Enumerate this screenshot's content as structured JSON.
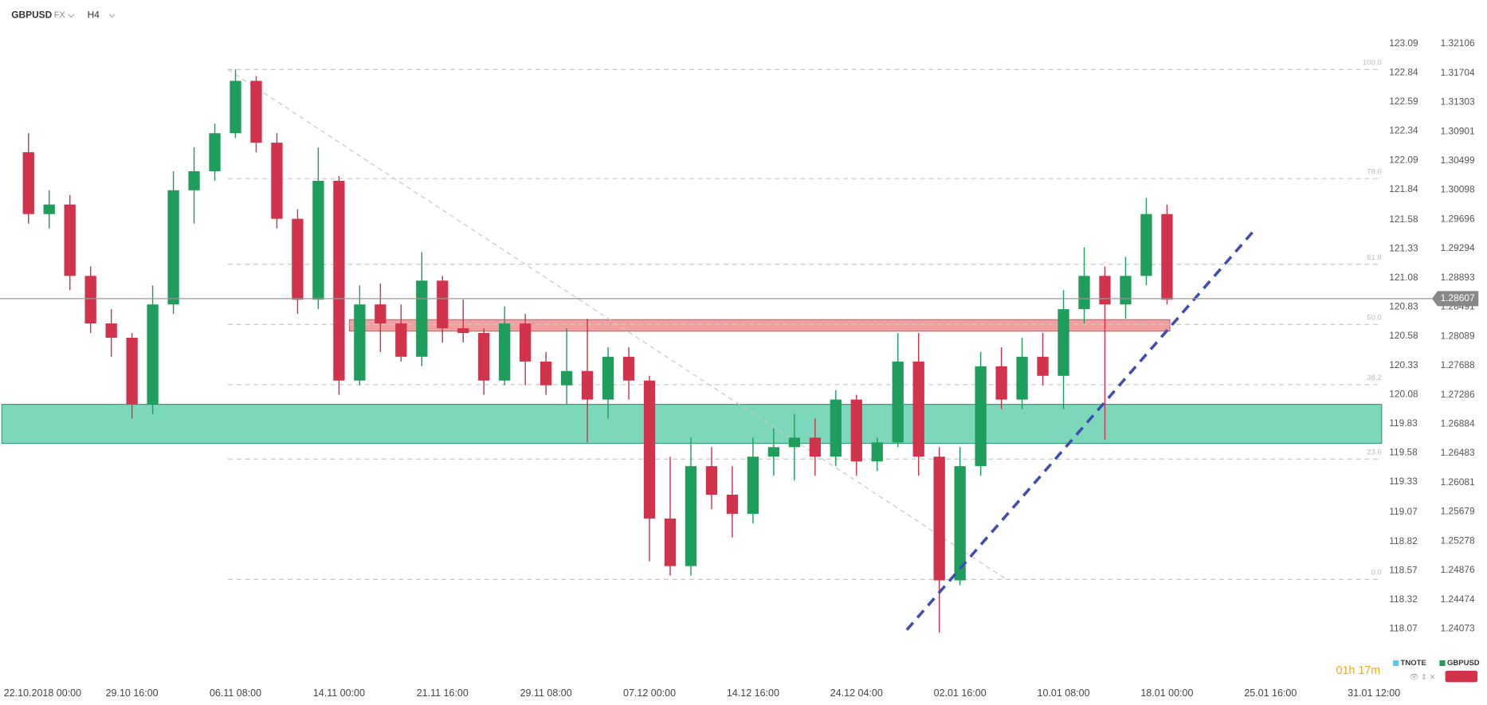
{
  "chart_data": {
    "type": "candlestick",
    "symbol": "GBPUSD",
    "market": "FX",
    "timeframe": "H4",
    "countdown": "01h 17m",
    "up_color": "#1f9d5c",
    "down_color": "#d0334b",
    "categories": [
      "22.10.2018 00:00",
      null,
      null,
      null,
      null,
      "29.10 16:00",
      null,
      null,
      null,
      null,
      "06.11 08:00",
      null,
      null,
      null,
      null,
      "14.11 00:00",
      null,
      null,
      null,
      null,
      "21.11 16:00",
      null,
      null,
      null,
      null,
      "29.11 08:00",
      null,
      null,
      null,
      null,
      "07.12 00:00",
      null,
      null,
      null,
      null,
      "14.12 16:00",
      null,
      null,
      null,
      null,
      "24.12 04:00",
      null,
      null,
      null,
      null,
      "02.01 16:00",
      null,
      null,
      null,
      null,
      "10.01 08:00",
      null,
      null,
      null,
      null,
      "18.01 00:00",
      null,
      null,
      null,
      null,
      "25.01 16:00",
      null,
      null,
      null,
      null,
      "31.01 12:00"
    ],
    "open": [
      1.30617,
      1.29768,
      1.29899,
      1.28919,
      1.28266,
      1.2807,
      1.27155,
      1.28527,
      1.30095,
      1.30356,
      1.30878,
      1.31597,
      1.30748,
      1.29703,
      1.28592,
      1.30225,
      1.27482,
      1.28527,
      1.28266,
      1.27809,
      1.28854,
      1.282,
      1.28135,
      1.27482,
      1.28266,
      1.27743,
      1.27417,
      1.27613,
      1.27221,
      1.27809,
      1.27482,
      1.25588,
      1.24935,
      1.26307,
      1.25915,
      1.25653,
      1.26437,
      1.26568,
      1.26698,
      1.26437,
      1.27221,
      1.26372,
      1.26633,
      1.27743,
      1.26437,
      1.24739,
      1.26307,
      1.27678,
      1.27221,
      1.27809,
      1.27547,
      1.28462,
      1.28919,
      1.28527,
      1.28919,
      1.29768,
      null,
      null,
      null,
      null,
      null,
      null,
      null,
      null,
      null,
      null
    ],
    "high": [
      1.30878,
      1.30095,
      1.30029,
      1.2905,
      1.28462,
      1.28135,
      1.28788,
      1.30356,
      1.30682,
      1.31009,
      1.31753,
      1.31662,
      1.30878,
      1.29833,
      1.30682,
      1.3029,
      1.28788,
      1.28814,
      1.28527,
      1.29245,
      1.28919,
      1.28592,
      1.282,
      1.28501,
      1.28396,
      1.27874,
      1.282,
      1.28331,
      1.27939,
      1.27939,
      1.27547,
      1.26437,
      1.26698,
      1.26568,
      1.26307,
      1.26698,
      1.26829,
      1.27025,
      1.2696,
      1.27351,
      1.27286,
      1.26698,
      1.28135,
      1.28135,
      1.26568,
      1.26568,
      1.27874,
      1.27939,
      1.2807,
      1.28135,
      1.28723,
      1.29311,
      1.2905,
      1.2918,
      1.2999,
      1.29899,
      null,
      null,
      null,
      null,
      null,
      null,
      null,
      null,
      null,
      null
    ],
    "low": [
      1.29637,
      1.29572,
      1.28723,
      1.28135,
      1.27809,
      1.2696,
      1.27025,
      1.28396,
      1.29637,
      1.30225,
      1.30813,
      1.30617,
      1.29572,
      1.28396,
      1.28462,
      1.27286,
      1.27417,
      1.27874,
      1.27743,
      1.27678,
      1.28005,
      1.28005,
      1.27286,
      1.27417,
      1.27417,
      1.27286,
      1.27155,
      1.26633,
      1.2696,
      1.27221,
      1.25,
      1.24804,
      1.24804,
      1.25719,
      1.25327,
      1.25523,
      1.26176,
      1.26111,
      1.26176,
      1.26307,
      1.26176,
      1.26241,
      1.26568,
      1.26176,
      1.24021,
      1.24674,
      1.26176,
      1.2709,
      1.2709,
      1.27417,
      1.2709,
      1.28266,
      1.26672,
      1.28331,
      1.28788,
      1.28527,
      null,
      null,
      null,
      null,
      null,
      null,
      null,
      null,
      null,
      null
    ],
    "close": [
      1.29768,
      1.29899,
      1.28919,
      1.28266,
      1.2807,
      1.27155,
      1.28527,
      1.30095,
      1.30356,
      1.30878,
      1.31597,
      1.30748,
      1.29703,
      1.28592,
      1.30225,
      1.27482,
      1.28527,
      1.28266,
      1.27809,
      1.28854,
      1.282,
      1.28135,
      1.27482,
      1.28266,
      1.27743,
      1.27417,
      1.27613,
      1.27221,
      1.27809,
      1.27482,
      1.25588,
      1.24935,
      1.26307,
      1.25915,
      1.25653,
      1.26437,
      1.26568,
      1.26698,
      1.26437,
      1.27221,
      1.26372,
      1.26633,
      1.27743,
      1.26437,
      1.24739,
      1.26307,
      1.27678,
      1.27221,
      1.27809,
      1.27547,
      1.28462,
      1.28919,
      1.28527,
      1.28919,
      1.29768,
      1.28592,
      null,
      null,
      null,
      null,
      null,
      null,
      null,
      null,
      null,
      null
    ],
    "ylim": [
      1.23498,
      1.32315
    ],
    "yticks": [
      1.32106,
      1.31704,
      1.31303,
      1.30901,
      1.30499,
      1.30098,
      1.29696,
      1.29294,
      1.28893,
      1.28491,
      1.28089,
      1.27688,
      1.27286,
      1.26884,
      1.26483,
      1.26081,
      1.25679,
      1.25278,
      1.24876,
      1.24474,
      1.24073
    ],
    "y2lim": [
      117.71,
      123.22
    ],
    "y2ticks": [
      123.09,
      122.84,
      122.59,
      122.34,
      122.09,
      121.84,
      121.58,
      121.33,
      121.08,
      120.83,
      120.58,
      120.33,
      120.08,
      119.83,
      119.58,
      119.33,
      119.07,
      118.82,
      118.57,
      118.32,
      118.07
    ],
    "last_price": 1.28607,
    "fib": {
      "high": 1.31753,
      "low": 1.24752,
      "color": "#c8c8c8",
      "levels": [
        {
          "value": 100,
          "label": "100.0"
        },
        78.6,
        61.8,
        {
          "value": 50,
          "label": "50.0"
        },
        38.2,
        23.6,
        {
          "value": 0,
          "label": "0.0"
        }
      ]
    },
    "zones": [
      {
        "top": 1.27155,
        "bottom": 1.2662,
        "color": "#7dd8bb"
      },
      {
        "top": 1.28318,
        "bottom": 1.28161,
        "color": "#f0a0a0"
      }
    ],
    "legend": [
      {
        "name": "TNOTE",
        "color": "#5bc8f0"
      },
      {
        "name": "GBPUSD",
        "color": "#1f9d5c"
      }
    ]
  }
}
